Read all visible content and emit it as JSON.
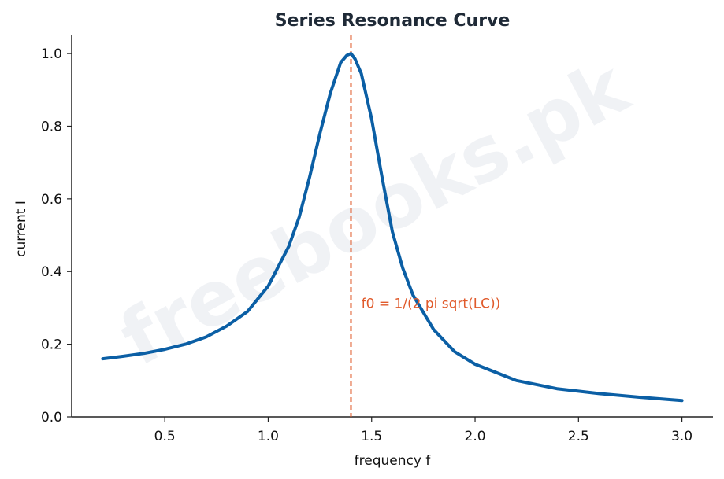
{
  "chart_data": {
    "type": "line",
    "title": "Series Resonance Curve",
    "xlabel": "frequency f",
    "ylabel": "current I",
    "xlim": [
      0.05,
      3.15
    ],
    "ylim": [
      0,
      1.05
    ],
    "xticks": [
      "0.5",
      "1.0",
      "1.5",
      "2.0",
      "2.5",
      "3.0"
    ],
    "yticks": [
      "0.0",
      "0.2",
      "0.4",
      "0.6",
      "0.8",
      "1.0"
    ],
    "grid": false,
    "series": [
      {
        "color": "#0b5fa5",
        "x": [
          0.2,
          0.3,
          0.4,
          0.5,
          0.6,
          0.7,
          0.8,
          0.9,
          1.0,
          1.1,
          1.15,
          1.2,
          1.25,
          1.3,
          1.35,
          1.38,
          1.4,
          1.42,
          1.45,
          1.5,
          1.55,
          1.6,
          1.65,
          1.7,
          1.8,
          1.9,
          2.0,
          2.2,
          2.4,
          2.6,
          2.8,
          3.0
        ],
        "y": [
          0.16,
          0.167,
          0.175,
          0.186,
          0.2,
          0.22,
          0.25,
          0.29,
          0.36,
          0.47,
          0.55,
          0.66,
          0.78,
          0.89,
          0.975,
          0.995,
          1.0,
          0.985,
          0.945,
          0.82,
          0.66,
          0.51,
          0.41,
          0.335,
          0.24,
          0.18,
          0.145,
          0.1,
          0.077,
          0.064,
          0.054,
          0.045
        ]
      }
    ],
    "annotations": [
      {
        "text": "f0 = 1/(2 pi sqrt(LC))",
        "x": 1.45,
        "y": 0.3,
        "color": "#e05a2b"
      }
    ],
    "vline": {
      "x": 1.4,
      "color": "#e05a2b",
      "style": "dashed"
    }
  },
  "watermark": "freebooks.pk"
}
